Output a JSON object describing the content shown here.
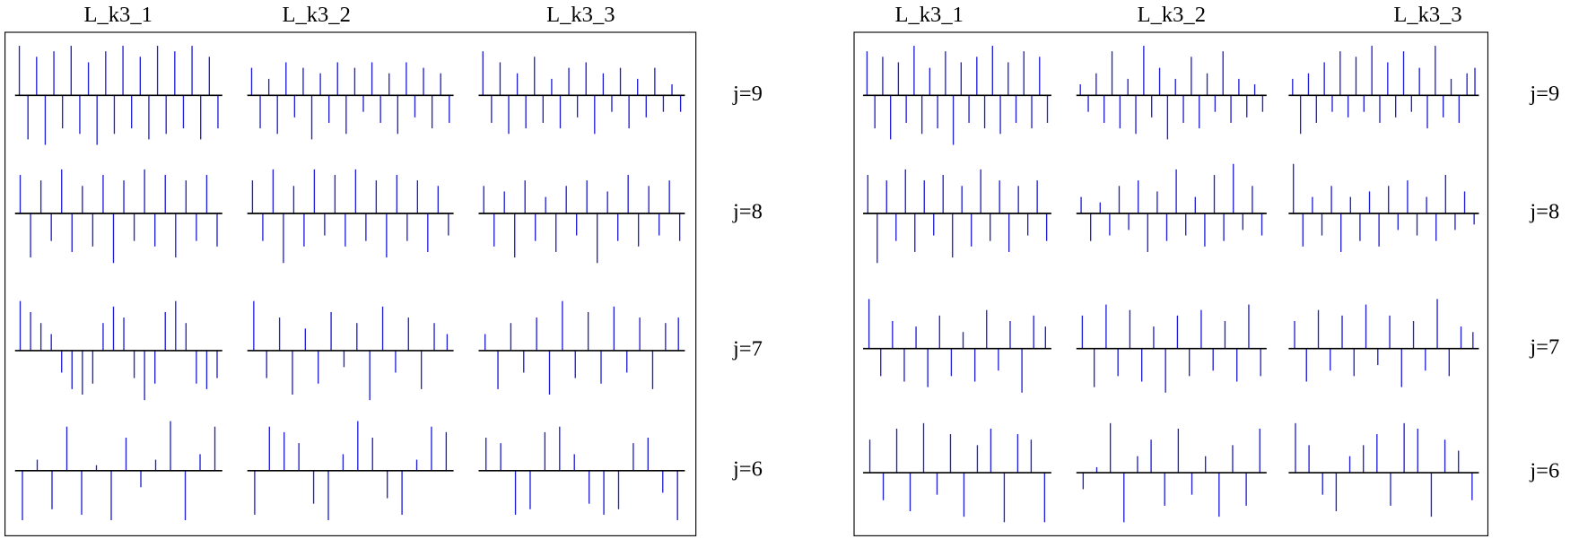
{
  "chart_data": [
    {
      "type": "stem",
      "columns": [
        "L_k3_1",
        "L_k3_2",
        "L_k3_3"
      ],
      "ylim": [
        -1,
        1
      ],
      "color": "#1f1fd6",
      "rows": [
        {
          "label": "j=9",
          "panels": [
            [
              0.9,
              -0.8,
              0.7,
              -0.9,
              0.8,
              -0.6,
              0.9,
              -0.7,
              0.6,
              -0.9,
              0.8,
              -0.7,
              0.9,
              -0.6,
              0.7,
              -0.8,
              0.9,
              -0.7,
              0.8,
              -0.6,
              0.9,
              -0.8,
              0.7,
              -0.6
            ],
            [
              0.5,
              -0.6,
              0.3,
              -0.7,
              0.6,
              -0.4,
              0.5,
              -0.8,
              0.4,
              -0.5,
              0.6,
              -0.7,
              0.5,
              -0.3,
              0.6,
              -0.5,
              0.4,
              -0.7,
              0.6,
              -0.4,
              0.5,
              -0.6,
              0.4,
              -0.5
            ],
            [
              0.8,
              -0.5,
              0.6,
              -0.7,
              0.4,
              -0.6,
              0.7,
              -0.5,
              0.3,
              -0.6,
              0.5,
              -0.4,
              0.6,
              -0.7,
              0.4,
              -0.3,
              0.5,
              -0.6,
              0.3,
              -0.4,
              0.5,
              -0.3,
              0.2,
              -0.3
            ]
          ]
        },
        {
          "label": "j=8",
          "panels": [
            [
              0.7,
              -0.8,
              0.6,
              -0.5,
              0.8,
              -0.7,
              0.5,
              -0.6,
              0.7,
              -0.9,
              0.6,
              -0.5,
              0.8,
              -0.6,
              0.7,
              -0.8,
              0.6,
              -0.5,
              0.7,
              -0.6
            ],
            [
              0.6,
              -0.5,
              0.8,
              -0.9,
              0.5,
              -0.6,
              0.8,
              -0.4,
              0.7,
              -0.6,
              0.8,
              -0.5,
              0.6,
              -0.8,
              0.7,
              -0.5,
              0.6,
              -0.7,
              0.5,
              -0.4
            ],
            [
              0.5,
              -0.6,
              0.4,
              -0.8,
              0.6,
              -0.5,
              0.3,
              -0.7,
              0.5,
              -0.4,
              0.6,
              -0.9,
              0.4,
              -0.5,
              0.7,
              -0.6,
              0.5,
              -0.4,
              0.6,
              -0.5
            ]
          ]
        },
        {
          "label": "j=7",
          "panels": [
            [
              0.9,
              0.7,
              0.5,
              0.3,
              -0.4,
              -0.7,
              -0.8,
              -0.6,
              0.5,
              0.8,
              0.6,
              -0.5,
              -0.9,
              -0.6,
              0.7,
              0.9,
              0.5,
              -0.6,
              -0.7,
              -0.5
            ],
            [
              0.9,
              -0.5,
              0.6,
              -0.8,
              0.4,
              -0.6,
              0.7,
              -0.3,
              0.5,
              -0.9,
              0.8,
              -0.4,
              0.6,
              -0.7,
              0.5,
              0.3
            ],
            [
              0.3,
              -0.7,
              0.5,
              -0.4,
              0.6,
              -0.8,
              0.9,
              -0.5,
              0.7,
              -0.6,
              0.8,
              -0.4,
              0.6,
              -0.7,
              0.5,
              0.6
            ]
          ]
        },
        {
          "label": "j=6",
          "panels": [
            [
              -0.9,
              0.2,
              -0.7,
              0.8,
              -0.8,
              0.1,
              -0.9,
              0.6,
              -0.3,
              0.2,
              0.9,
              -0.9,
              0.3,
              0.8
            ],
            [
              -0.8,
              0.8,
              0.7,
              0.5,
              -0.6,
              -0.9,
              0.3,
              0.9,
              0.6,
              -0.5,
              -0.8,
              0.2,
              0.8,
              0.7
            ],
            [
              0.6,
              0.5,
              -0.8,
              -0.7,
              0.7,
              0.8,
              0.3,
              -0.6,
              -0.8,
              -0.7,
              0.5,
              0.6,
              -0.4,
              -0.9
            ]
          ]
        }
      ]
    },
    {
      "type": "stem",
      "columns": [
        "L_k3_1",
        "L_k3_2",
        "L_k3_3"
      ],
      "ylim": [
        -1,
        1
      ],
      "color": "#1f1fd6",
      "rows": [
        {
          "label": "j=9",
          "panels": [
            [
              0.8,
              -0.6,
              0.7,
              -0.8,
              0.6,
              -0.5,
              0.9,
              -0.7,
              0.5,
              -0.6,
              0.8,
              -0.9,
              0.6,
              -0.5,
              0.7,
              -0.6,
              0.9,
              -0.7,
              0.6,
              -0.5,
              0.8,
              -0.6,
              0.7,
              -0.5
            ],
            [
              0.2,
              -0.3,
              0.4,
              -0.5,
              0.8,
              -0.6,
              0.3,
              -0.7,
              0.9,
              -0.4,
              0.5,
              -0.8,
              0.3,
              -0.5,
              0.7,
              -0.6,
              0.4,
              -0.3,
              0.8,
              -0.5,
              0.3,
              -0.4,
              0.2,
              -0.3
            ],
            [
              0.3,
              -0.7,
              0.4,
              -0.5,
              0.6,
              -0.3,
              0.8,
              -0.4,
              0.7,
              -0.3,
              0.9,
              -0.5,
              0.6,
              -0.4,
              0.8,
              -0.3,
              0.5,
              -0.6,
              0.9,
              -0.4,
              0.3,
              -0.5,
              0.4,
              0.5
            ]
          ]
        },
        {
          "label": "j=8",
          "panels": [
            [
              0.7,
              -0.9,
              0.6,
              -0.5,
              0.8,
              -0.7,
              0.6,
              -0.4,
              0.7,
              -0.8,
              0.5,
              -0.6,
              0.8,
              -0.5,
              0.6,
              -0.7,
              0.5,
              -0.4,
              0.6,
              -0.5
            ],
            [
              0.3,
              -0.5,
              0.2,
              -0.4,
              0.5,
              -0.3,
              0.6,
              -0.7,
              0.4,
              -0.5,
              0.8,
              -0.4,
              0.3,
              -0.6,
              0.7,
              -0.5,
              0.9,
              -0.3,
              0.5,
              -0.4
            ],
            [
              0.9,
              -0.6,
              0.3,
              -0.4,
              0.5,
              -0.7,
              0.3,
              -0.5,
              0.4,
              -0.6,
              0.5,
              -0.3,
              0.6,
              -0.4,
              0.3,
              -0.5,
              0.7,
              -0.3,
              0.4,
              -0.2
            ]
          ]
        },
        {
          "label": "j=7",
          "panels": [
            [
              0.9,
              -0.5,
              0.5,
              -0.6,
              0.4,
              -0.7,
              0.6,
              -0.5,
              0.3,
              -0.6,
              0.7,
              -0.4,
              0.5,
              -0.8,
              0.6,
              0.4
            ],
            [
              0.6,
              -0.7,
              0.8,
              -0.5,
              0.7,
              -0.6,
              0.4,
              -0.8,
              0.6,
              -0.5,
              0.7,
              -0.4,
              0.5,
              -0.6,
              0.8,
              -0.5
            ],
            [
              0.5,
              -0.6,
              0.7,
              -0.4,
              0.6,
              -0.5,
              0.8,
              -0.3,
              0.6,
              -0.7,
              0.5,
              -0.4,
              0.9,
              -0.5,
              0.4,
              0.3
            ]
          ]
        },
        {
          "label": "j=6",
          "panels": [
            [
              0.6,
              -0.5,
              0.8,
              -0.7,
              0.9,
              -0.4,
              0.7,
              -0.8,
              0.5,
              0.8,
              -0.9,
              0.7,
              0.6,
              -0.9
            ],
            [
              -0.3,
              0.1,
              0.9,
              -0.9,
              0.3,
              0.6,
              -0.6,
              0.8,
              -0.4,
              0.3,
              -0.8,
              0.5,
              -0.6,
              0.8
            ],
            [
              0.9,
              0.5,
              -0.4,
              -0.7,
              0.3,
              0.5,
              0.7,
              -0.6,
              0.9,
              0.8,
              -0.8,
              0.6,
              0.4,
              -0.5
            ]
          ]
        }
      ]
    }
  ]
}
